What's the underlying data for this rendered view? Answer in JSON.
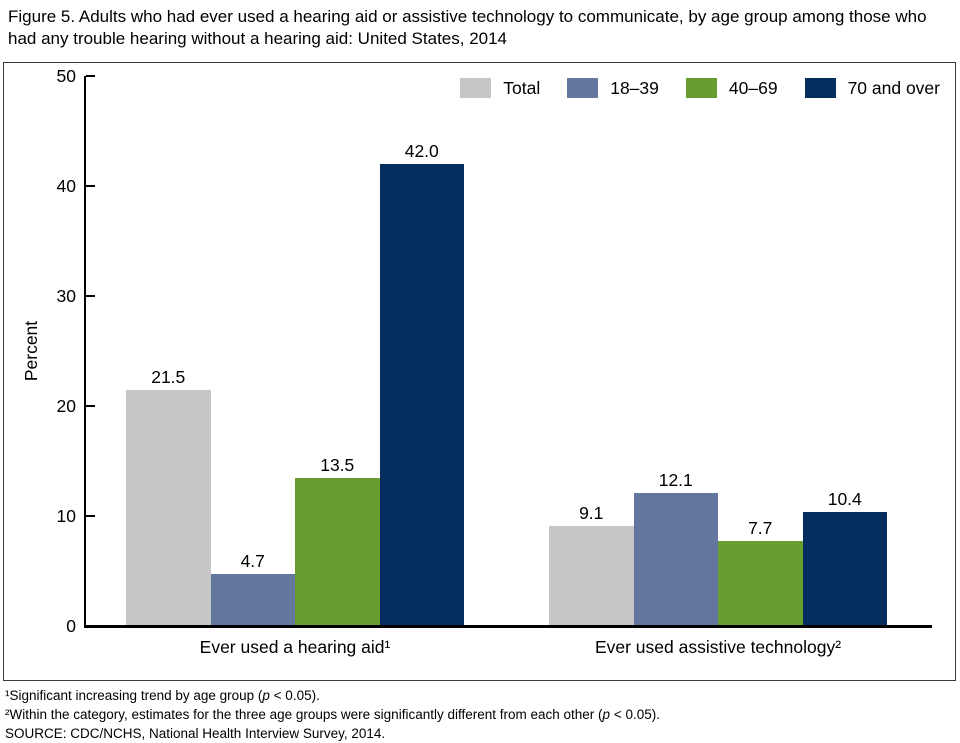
{
  "title": "Figure 5. Adults who had ever used a hearing aid or assistive technology to communicate, by age group among those who had any trouble hearing without a hearing aid: United States, 2014",
  "chart_data": {
    "type": "bar",
    "categories": [
      "Ever used a hearing aid¹",
      "Ever used assistive technology²"
    ],
    "series": [
      {
        "name": "Total",
        "color": "#c6c6c6",
        "values": [
          21.5,
          9.1
        ]
      },
      {
        "name": "18–39",
        "color": "#62769e",
        "values": [
          4.7,
          12.1
        ]
      },
      {
        "name": "40–69",
        "color": "#689e30",
        "values": [
          13.5,
          7.7
        ]
      },
      {
        "name": "70 and over",
        "color": "#052d5e",
        "values": [
          42.0,
          10.4
        ]
      }
    ],
    "ylabel": "Percent",
    "ylim": [
      0,
      50
    ],
    "yticks": [
      0,
      10,
      20,
      30,
      40,
      50
    ],
    "grid": false,
    "legend_position": "top-right",
    "value_labels": true,
    "axis_color": "#000000",
    "frame_border_color": "#3a3a3a"
  },
  "footnotes": {
    "fn1_pre": "¹Significant increasing trend by age group (",
    "fn1_p": "p",
    "fn1_post": " < 0.05).",
    "fn2_pre": "²Within the category, estimates for the three age groups were significantly different from each other (",
    "fn2_p": "p",
    "fn2_post": " < 0.05).",
    "source": "SOURCE: CDC/NCHS, National Health Interview Survey, 2014."
  }
}
